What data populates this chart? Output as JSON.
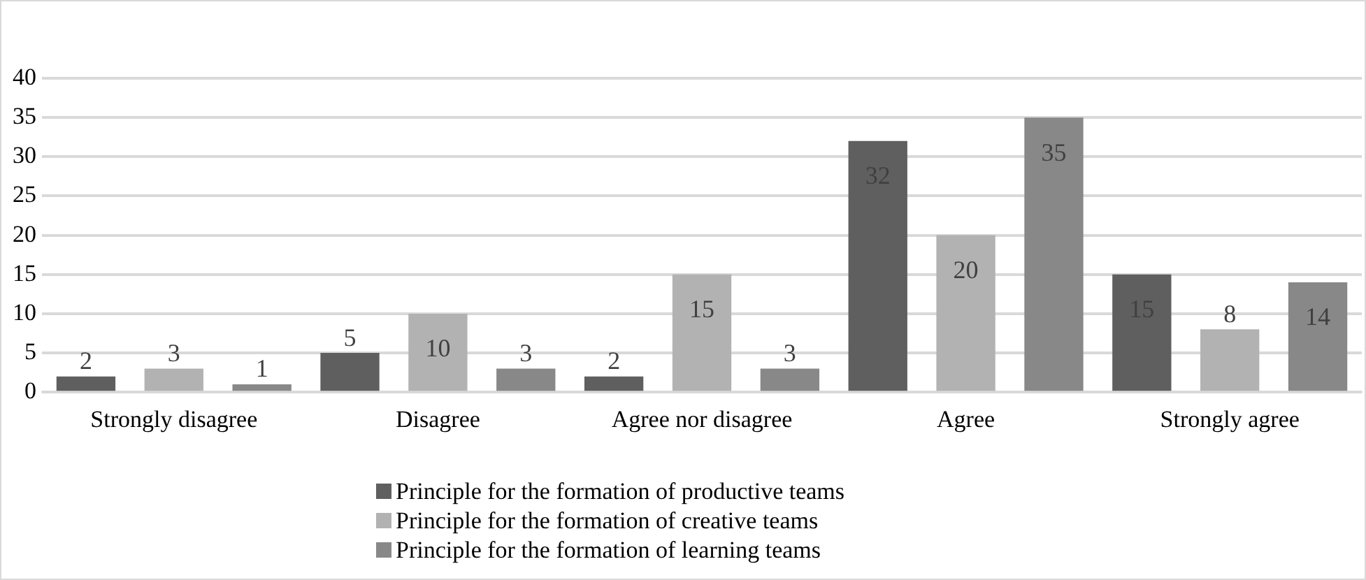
{
  "chart_data": {
    "type": "bar",
    "categories": [
      "Strongly disagree",
      "Disagree",
      "Agree nor disagree",
      "Agree",
      "Strongly agree"
    ],
    "series": [
      {
        "name": "Principle for the formation of productive teams",
        "color": "#5f5f5f",
        "values": [
          2,
          5,
          2,
          32,
          15
        ]
      },
      {
        "name": "Principle for the formation of creative teams",
        "color": "#b2b2b2",
        "values": [
          3,
          10,
          15,
          20,
          8
        ]
      },
      {
        "name": "Principle for the formation of learning teams",
        "color": "#888888",
        "values": [
          1,
          3,
          3,
          35,
          14
        ]
      }
    ],
    "ylim": [
      0,
      40
    ],
    "yticks": [
      0,
      5,
      10,
      15,
      20,
      25,
      30,
      35,
      40
    ],
    "grid": "y",
    "legend": "bottom",
    "data_labels": true
  }
}
